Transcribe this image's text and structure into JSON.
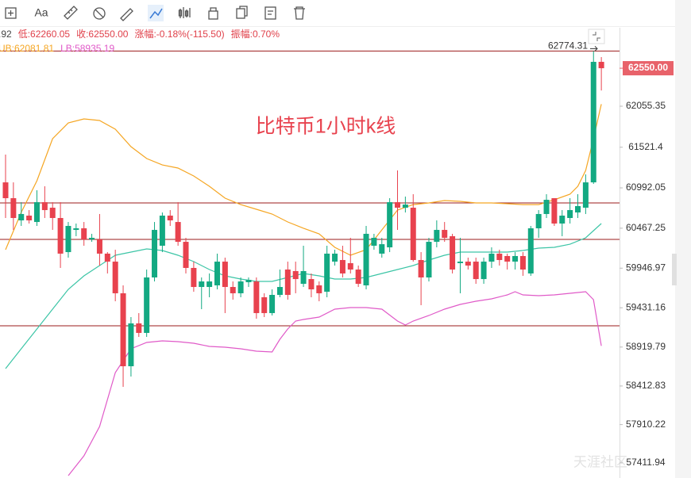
{
  "toolbar": {
    "font_button": "Aa"
  },
  "chart_data": {
    "type": "candlestick",
    "title": "比特币1小时k线",
    "info_items": [
      ".92",
      "低:62260.05",
      "收:62550.00",
      "涨幅:-0.18%(-115.50)",
      "振幅:0.70%"
    ],
    "legend_labels": [
      "UB:62081.81",
      "LB:58935.19"
    ],
    "watermark": "天涯社区",
    "up_color": "#13a982",
    "down_color": "#e8424e",
    "ylim": [
      57215,
      63077
    ],
    "yticks": [
      62055.35,
      61521.4,
      60992.05,
      60467.25,
      59946.97,
      59431.16,
      58919.79,
      58412.83,
      57910.22,
      57411.94
    ],
    "hlines": [
      {
        "value": 62774.31,
        "label": "62774.31"
      },
      60796,
      60321,
      59197
    ],
    "last_price": {
      "value": 62550,
      "label": "62550.00"
    },
    "candles": {
      "open": [
        61064,
        60858,
        60569,
        60631,
        60548,
        60806,
        60734,
        60600,
        60156,
        60445,
        60466,
        60321,
        60321,
        60136,
        60032,
        59620,
        58670,
        59228,
        59104,
        59826,
        60239,
        60631,
        60548,
        60290,
        59950,
        59702,
        59702,
        59723,
        60032,
        59702,
        59620,
        59764,
        59774,
        59568,
        59362,
        59599,
        59929,
        59909,
        59743,
        59805,
        59723,
        59640,
        60032,
        60053,
        60012,
        59929,
        59723,
        60239,
        60136,
        60218,
        60806,
        60734,
        60734,
        60053,
        59826,
        60290,
        60445,
        60363,
        60012,
        60032,
        60032,
        59805,
        60032,
        60136,
        60105,
        60032,
        60105,
        59878,
        60466,
        60652,
        60858,
        60528,
        60600,
        60672,
        60734,
        61064,
        62633
      ],
      "high": [
        61426,
        61064,
        60806,
        60703,
        60961,
        61013,
        60806,
        60806,
        60548,
        60528,
        60548,
        60394,
        60652,
        60156,
        60187,
        59723,
        59310,
        59362,
        59929,
        60548,
        60672,
        60703,
        60806,
        60342,
        60032,
        59826,
        59878,
        60136,
        60084,
        59774,
        59826,
        59826,
        59826,
        59620,
        59671,
        59929,
        60032,
        60032,
        60239,
        59878,
        59774,
        60239,
        60187,
        60239,
        60342,
        59981,
        60497,
        60394,
        60342,
        60858,
        61219,
        60879,
        60910,
        60156,
        60342,
        60569,
        60548,
        60394,
        60342,
        60084,
        60084,
        60084,
        60218,
        60187,
        60136,
        60156,
        60156,
        60497,
        60703,
        60910,
        60858,
        60703,
        60858,
        60910,
        61168,
        62774.31,
        62695
      ],
      "low": [
        60600,
        60445,
        60497,
        60528,
        60497,
        60600,
        60445,
        59950,
        60084,
        60363,
        60239,
        60290,
        59981,
        59878,
        59516,
        58402,
        58536,
        59052,
        59052,
        59774,
        60156,
        60497,
        60239,
        59878,
        59640,
        59413,
        59568,
        59671,
        59362,
        59537,
        59568,
        59702,
        59289,
        59310,
        59331,
        59568,
        59537,
        59620,
        59702,
        59568,
        59516,
        59568,
        59981,
        59826,
        59878,
        59702,
        59671,
        60187,
        60084,
        60156,
        60445,
        60672,
        60032,
        59465,
        59774,
        60218,
        60290,
        59878,
        59620,
        59929,
        59743,
        59743,
        59950,
        59981,
        59929,
        59929,
        59847,
        59847,
        60342,
        60600,
        60497,
        60363,
        60528,
        60600,
        60652,
        61044,
        62260.05
      ],
      "close": [
        60858,
        60600,
        60652,
        60569,
        60806,
        60703,
        60600,
        60136,
        60497,
        60466,
        60321,
        60342,
        60136,
        60032,
        59620,
        58670,
        59228,
        59104,
        59826,
        60445,
        60631,
        60569,
        60290,
        59950,
        59702,
        59774,
        59774,
        60032,
        59702,
        59620,
        59774,
        59795,
        59362,
        59362,
        59599,
        59702,
        59599,
        59805,
        59909,
        59671,
        59620,
        60136,
        60136,
        59878,
        59929,
        59743,
        60394,
        60342,
        60259,
        60806,
        60734,
        60775,
        60053,
        59826,
        60290,
        60445,
        60342,
        59929,
        60032,
        59981,
        59805,
        60032,
        60136,
        60053,
        60032,
        60105,
        59929,
        60466,
        60652,
        60837,
        60528,
        60631,
        60703,
        60755,
        61064,
        62633,
        62550
      ]
    },
    "series": [
      {
        "name": "UB",
        "color": "#f5a623",
        "x": [
          0,
          2,
          4,
          6,
          8,
          10,
          12,
          14,
          16,
          18,
          20,
          22,
          24,
          26,
          28,
          30,
          32,
          34,
          36,
          38,
          40,
          42,
          44,
          46,
          48,
          50,
          52,
          54,
          56,
          58,
          60,
          62,
          64,
          66,
          68,
          70,
          72,
          73,
          74,
          75,
          76
        ],
        "values": [
          60187,
          60672,
          61085,
          61632,
          61838,
          61890,
          61869,
          61756,
          61529,
          61374,
          61291,
          61250,
          61147,
          61013,
          60858,
          60775,
          60714,
          60652,
          60548,
          60466,
          60394,
          60218,
          60115,
          60187,
          60445,
          60703,
          60775,
          60796,
          60827,
          60817,
          60796,
          60796,
          60786,
          60775,
          60775,
          60837,
          60910,
          61013,
          61219,
          61632,
          62081.81
        ]
      },
      {
        "color": "#3cc5a6",
        "x": [
          0,
          2,
          4,
          6,
          8,
          10,
          12,
          14,
          16,
          18,
          20,
          22,
          24,
          26,
          28,
          30,
          32,
          34,
          36,
          38,
          40,
          42,
          44,
          46,
          48,
          50,
          52,
          54,
          56,
          58,
          60,
          62,
          64,
          66,
          68,
          70,
          72,
          74,
          76
        ],
        "values": [
          58639,
          58897,
          59155,
          59413,
          59671,
          59847,
          59981,
          60115,
          60156,
          60198,
          60177,
          60115,
          60032,
          59929,
          59847,
          59805,
          59774,
          59774,
          59826,
          59878,
          59847,
          59805,
          59805,
          59826,
          59878,
          59929,
          59981,
          60053,
          60115,
          60156,
          60156,
          60156,
          60156,
          60177,
          60208,
          60218,
          60259,
          60342,
          60528
        ]
      },
      {
        "name": "LB",
        "color": "#e05ac8",
        "x": [
          8,
          10,
          12,
          14,
          16,
          18,
          20,
          22,
          24,
          26,
          28,
          30,
          32,
          34,
          35,
          36,
          37,
          38,
          40,
          42,
          44,
          46,
          48,
          50,
          51,
          52,
          54,
          56,
          58,
          60,
          62,
          64,
          65,
          66,
          68,
          70,
          72,
          74,
          75,
          76
        ],
        "values": [
          57246,
          57504,
          57886,
          58588,
          58897,
          58980,
          59000,
          58990,
          58969,
          58928,
          58918,
          58897,
          58866,
          58856,
          59021,
          59155,
          59258,
          59279,
          59310,
          59413,
          59434,
          59434,
          59413,
          59258,
          59207,
          59258,
          59331,
          59413,
          59475,
          59516,
          59547,
          59599,
          59640,
          59599,
          59589,
          59599,
          59620,
          59640,
          59537,
          58935.19
        ]
      }
    ]
  }
}
